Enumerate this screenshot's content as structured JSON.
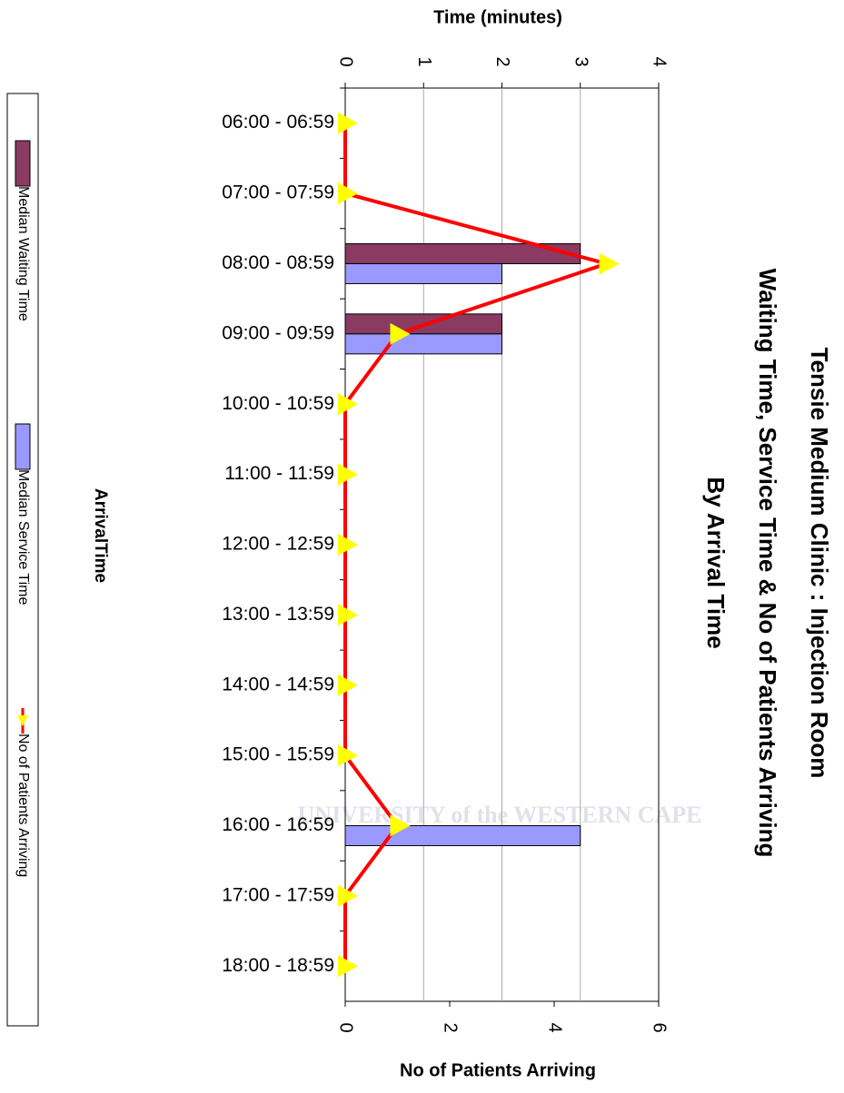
{
  "chart_data": {
    "type": "bar",
    "horizontal": true,
    "title": [
      "Tensie Medium Clinic : Injection Room",
      "Waiting Time, Service Time & No of Patients Arriving",
      "By Arrival Time"
    ],
    "y_label": "Time (minutes)",
    "y2_label": "No of Patients Arriving",
    "x_label": "ArrivalTime",
    "watermark": "UNIVERSITY of the WESTERN CAPE",
    "categories": [
      "06:00 - 06:59",
      "07:00 - 07:59",
      "08:00 - 08:59",
      "09:00 - 09:59",
      "10:00 - 10:59",
      "11:00 - 11:59",
      "12:00 - 12:59",
      "13:00 - 13:59",
      "14:00 - 14:59",
      "15:00 - 15:59",
      "16:00 - 16:59",
      "17:00 - 17:59",
      "18:00 - 18:59"
    ],
    "series": [
      {
        "name": "Median Waiting Time",
        "color": "#8b3a62",
        "values": [
          0,
          0,
          3,
          2,
          0,
          0,
          0,
          0,
          0,
          0,
          0,
          0,
          0
        ]
      },
      {
        "name": "Median Service Time",
        "color": "#9999ff",
        "values": [
          0,
          0,
          2,
          2,
          0,
          0,
          0,
          0,
          0,
          0,
          3,
          0,
          0
        ]
      },
      {
        "name": "No of Patients Arriving",
        "color": "#ff0000",
        "marker_color": "#ffff00",
        "type": "line",
        "axis": "y2",
        "values": [
          0,
          0,
          5,
          1,
          0,
          0,
          0,
          0,
          0,
          0,
          1,
          0,
          0
        ]
      }
    ],
    "ylim": [
      0,
      4
    ],
    "yticks": [
      0,
      1,
      2,
      3,
      4
    ],
    "y2lim": [
      0,
      6
    ],
    "y2ticks": [
      0,
      2,
      4,
      6
    ],
    "grid": true,
    "legend": "left"
  }
}
